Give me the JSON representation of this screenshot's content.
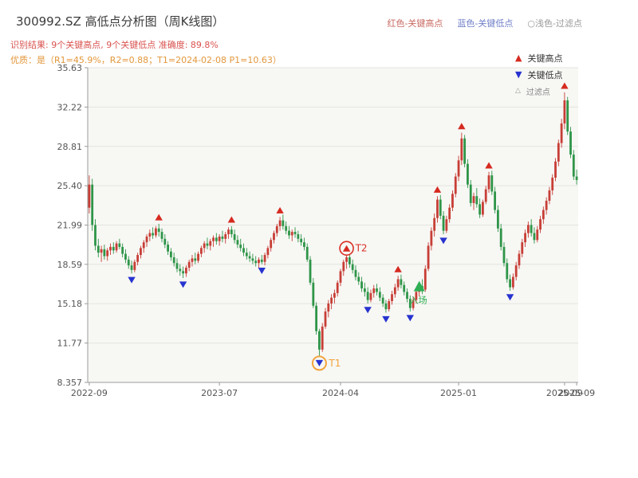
{
  "header": {
    "title": "300992.SZ 高低点分析图（周K线图）",
    "legend_top": [
      {
        "label": "红色-关键高点",
        "color": "#c96a62"
      },
      {
        "label": "蓝色-关键低点",
        "color": "#6f7fc8"
      },
      {
        "label": "○浅色-过滤点",
        "color": "#999999"
      }
    ],
    "result_line": "识别结果: 9个关键高点, 9个关键低点  准确度: 89.8%",
    "quality_line": "优质：是（R1=45.9%，R2=0.88；T1=2024-02-08 P1=10.63）"
  },
  "chart_data": {
    "type": "candlestick",
    "title": "300992.SZ 高低点分析图（周K线图）",
    "ylim": [
      8.357,
      35.63
    ],
    "yticks": [
      {
        "v": 8.357,
        "label": "8.357"
      },
      {
        "v": 11.77,
        "label": "11.77"
      },
      {
        "v": 15.18,
        "label": "15.18"
      },
      {
        "v": 18.59,
        "label": "18.59"
      },
      {
        "v": 21.99,
        "label": "21.99"
      },
      {
        "v": 25.4,
        "label": "25.40"
      },
      {
        "v": 28.81,
        "label": "28.81"
      },
      {
        "v": 32.22,
        "label": "32.22"
      },
      {
        "v": 35.63,
        "label": "35.63"
      }
    ],
    "xticks": [
      {
        "index": 0,
        "label": "2022-09"
      },
      {
        "index": 43,
        "label": "2023-07"
      },
      {
        "index": 83,
        "label": "2024-04"
      },
      {
        "index": 122,
        "label": "2025-01"
      },
      {
        "index": 157,
        "label": "2025-09"
      },
      {
        "index": 161,
        "label": "2025-09"
      }
    ],
    "legend": [
      {
        "label": "关键高点",
        "marker": "triangle-up",
        "color": "#d62a20"
      },
      {
        "label": "关键低点",
        "marker": "triangle-down",
        "color": "#2733cf"
      },
      {
        "label": "过滤点",
        "marker": "triangle-hollow",
        "color": "#9a9a9a"
      }
    ],
    "colors": {
      "up": "#c73e36",
      "down": "#2e9548",
      "high_marker": "#d62a20",
      "low_marker": "#2733cf",
      "grid": "#e4e4e0",
      "plot_bg": "#f7f7f4",
      "spine": "#9b9b9b",
      "tick_text": "#555555"
    },
    "candles": [
      [
        23.5,
        26.3,
        23.0,
        25.5
      ],
      [
        25.5,
        26.0,
        21.5,
        22.0
      ],
      [
        22.0,
        22.5,
        19.8,
        20.2
      ],
      [
        20.2,
        20.8,
        19.2,
        19.6
      ],
      [
        19.6,
        20.2,
        18.8,
        19.9
      ],
      [
        19.9,
        20.3,
        19.0,
        19.3
      ],
      [
        19.3,
        20.0,
        18.9,
        19.8
      ],
      [
        19.8,
        20.4,
        19.4,
        20.1
      ],
      [
        20.1,
        20.5,
        19.5,
        19.8
      ],
      [
        19.8,
        20.6,
        19.6,
        20.4
      ],
      [
        20.4,
        20.8,
        19.9,
        20.1
      ],
      [
        20.1,
        20.4,
        19.2,
        19.5
      ],
      [
        19.5,
        19.9,
        18.7,
        19.0
      ],
      [
        19.0,
        19.3,
        18.2,
        18.5
      ],
      [
        18.5,
        18.9,
        17.8,
        18.1
      ],
      [
        18.1,
        19.0,
        17.9,
        18.8
      ],
      [
        18.8,
        19.6,
        18.5,
        19.4
      ],
      [
        19.4,
        20.2,
        19.1,
        20.0
      ],
      [
        20.0,
        20.7,
        19.6,
        20.5
      ],
      [
        20.5,
        21.2,
        20.1,
        21.0
      ],
      [
        21.0,
        21.6,
        20.6,
        21.3
      ],
      [
        21.3,
        21.8,
        20.8,
        21.1
      ],
      [
        21.1,
        21.9,
        20.9,
        21.7
      ],
      [
        21.7,
        22.1,
        21.0,
        21.4
      ],
      [
        21.4,
        21.7,
        20.5,
        20.8
      ],
      [
        20.8,
        21.2,
        20.0,
        20.3
      ],
      [
        20.3,
        20.6,
        19.4,
        19.7
      ],
      [
        19.7,
        20.0,
        18.9,
        19.2
      ],
      [
        19.2,
        19.6,
        18.4,
        18.7
      ],
      [
        18.7,
        19.1,
        17.9,
        18.2
      ],
      [
        18.2,
        18.6,
        17.6,
        18.0
      ],
      [
        18.0,
        18.4,
        17.4,
        17.8
      ],
      [
        17.8,
        18.5,
        17.5,
        18.3
      ],
      [
        18.3,
        19.0,
        18.0,
        18.8
      ],
      [
        18.8,
        19.4,
        18.4,
        19.1
      ],
      [
        19.1,
        19.6,
        18.6,
        18.9
      ],
      [
        18.9,
        19.7,
        18.7,
        19.5
      ],
      [
        19.5,
        20.2,
        19.2,
        20.0
      ],
      [
        20.0,
        20.6,
        19.6,
        20.4
      ],
      [
        20.4,
        20.9,
        19.9,
        20.2
      ],
      [
        20.2,
        20.8,
        19.8,
        20.6
      ],
      [
        20.6,
        21.1,
        20.1,
        20.9
      ],
      [
        20.9,
        21.3,
        20.3,
        20.6
      ],
      [
        20.6,
        21.2,
        20.2,
        21.0
      ],
      [
        21.0,
        21.5,
        20.5,
        20.8
      ],
      [
        20.8,
        21.4,
        20.4,
        21.2
      ],
      [
        21.2,
        21.8,
        20.8,
        21.6
      ],
      [
        21.6,
        21.9,
        20.9,
        21.2
      ],
      [
        21.2,
        21.6,
        20.4,
        20.7
      ],
      [
        20.7,
        21.1,
        20.0,
        20.3
      ],
      [
        20.3,
        20.8,
        19.7,
        20.0
      ],
      [
        20.0,
        20.4,
        19.3,
        19.6
      ],
      [
        19.6,
        20.0,
        19.0,
        19.3
      ],
      [
        19.3,
        19.7,
        18.8,
        19.1
      ],
      [
        19.1,
        19.5,
        18.6,
        18.9
      ],
      [
        18.9,
        19.3,
        18.4,
        18.7
      ],
      [
        18.7,
        19.2,
        18.3,
        19.0
      ],
      [
        19.0,
        19.4,
        18.6,
        18.8
      ],
      [
        18.8,
        19.6,
        18.5,
        19.4
      ],
      [
        19.4,
        20.2,
        19.1,
        20.0
      ],
      [
        20.0,
        20.9,
        19.7,
        20.7
      ],
      [
        20.7,
        21.5,
        20.4,
        21.3
      ],
      [
        21.3,
        22.1,
        21.0,
        21.9
      ],
      [
        21.9,
        22.7,
        21.5,
        22.4
      ],
      [
        22.4,
        22.9,
        21.6,
        21.9
      ],
      [
        21.9,
        22.3,
        21.2,
        21.5
      ],
      [
        21.5,
        21.9,
        20.8,
        21.1
      ],
      [
        21.1,
        21.6,
        20.6,
        21.4
      ],
      [
        21.4,
        21.8,
        20.9,
        21.2
      ],
      [
        21.2,
        21.5,
        20.5,
        20.8
      ],
      [
        20.8,
        21.2,
        20.2,
        20.5
      ],
      [
        20.5,
        20.9,
        19.8,
        20.1
      ],
      [
        20.1,
        20.4,
        18.8,
        19.0
      ],
      [
        19.0,
        19.3,
        16.8,
        17.0
      ],
      [
        17.0,
        17.4,
        14.8,
        15.0
      ],
      [
        15.0,
        15.3,
        12.5,
        12.8
      ],
      [
        12.8,
        13.0,
        10.63,
        11.2
      ],
      [
        11.2,
        13.5,
        11.0,
        13.2
      ],
      [
        13.2,
        14.8,
        13.0,
        14.5
      ],
      [
        14.5,
        15.5,
        14.0,
        15.2
      ],
      [
        15.2,
        16.0,
        14.7,
        15.7
      ],
      [
        15.7,
        16.4,
        15.2,
        16.1
      ],
      [
        16.1,
        17.2,
        15.8,
        17.0
      ],
      [
        17.0,
        18.2,
        16.7,
        18.0
      ],
      [
        18.0,
        19.0,
        17.6,
        18.8
      ],
      [
        18.8,
        19.4,
        18.2,
        19.2
      ],
      [
        19.2,
        19.5,
        18.3,
        18.6
      ],
      [
        18.6,
        19.0,
        17.8,
        18.1
      ],
      [
        18.1,
        18.5,
        17.2,
        17.5
      ],
      [
        17.5,
        17.9,
        16.8,
        17.1
      ],
      [
        17.1,
        17.5,
        16.2,
        16.5
      ],
      [
        16.5,
        17.0,
        15.8,
        16.2
      ],
      [
        16.2,
        16.6,
        15.2,
        15.5
      ],
      [
        15.5,
        16.4,
        15.3,
        16.1
      ],
      [
        16.1,
        16.8,
        15.7,
        16.5
      ],
      [
        16.5,
        16.9,
        15.9,
        16.2
      ],
      [
        16.2,
        16.6,
        15.4,
        15.7
      ],
      [
        15.7,
        16.0,
        14.9,
        15.2
      ],
      [
        15.2,
        15.5,
        14.4,
        14.7
      ],
      [
        14.7,
        15.6,
        14.5,
        15.4
      ],
      [
        15.4,
        16.3,
        15.1,
        16.0
      ],
      [
        16.0,
        16.9,
        15.7,
        16.6
      ],
      [
        16.6,
        17.6,
        16.3,
        17.3
      ],
      [
        17.3,
        17.7,
        16.5,
        16.8
      ],
      [
        16.8,
        17.1,
        15.9,
        16.2
      ],
      [
        16.2,
        16.5,
        15.3,
        15.6
      ],
      [
        15.6,
        15.9,
        14.5,
        14.8
      ],
      [
        14.8,
        15.8,
        14.6,
        15.5
      ],
      [
        15.5,
        16.5,
        15.2,
        16.2
      ],
      [
        16.2,
        17.0,
        15.8,
        16.7
      ],
      [
        16.7,
        17.3,
        16.0,
        16.4
      ],
      [
        16.4,
        18.5,
        16.2,
        18.2
      ],
      [
        18.2,
        20.5,
        18.0,
        20.2
      ],
      [
        20.2,
        21.8,
        19.8,
        21.5
      ],
      [
        21.5,
        23.0,
        21.0,
        22.6
      ],
      [
        22.6,
        24.5,
        22.2,
        24.2
      ],
      [
        24.2,
        24.6,
        22.5,
        22.8
      ],
      [
        22.8,
        23.2,
        21.2,
        21.5
      ],
      [
        21.5,
        22.8,
        21.3,
        22.5
      ],
      [
        22.5,
        23.8,
        22.2,
        23.5
      ],
      [
        23.5,
        25.0,
        23.2,
        24.7
      ],
      [
        24.7,
        26.5,
        24.4,
        26.2
      ],
      [
        26.2,
        28.0,
        25.8,
        27.6
      ],
      [
        27.6,
        30.0,
        27.2,
        29.5
      ],
      [
        29.5,
        29.8,
        27.0,
        27.3
      ],
      [
        27.3,
        27.7,
        25.2,
        25.5
      ],
      [
        25.5,
        25.9,
        23.6,
        23.9
      ],
      [
        23.9,
        24.8,
        23.3,
        24.5
      ],
      [
        24.5,
        25.2,
        23.5,
        23.8
      ],
      [
        23.8,
        24.3,
        22.6,
        22.9
      ],
      [
        22.9,
        24.2,
        22.7,
        24.0
      ],
      [
        24.0,
        25.4,
        23.8,
        25.1
      ],
      [
        25.1,
        26.6,
        24.8,
        26.3
      ],
      [
        26.3,
        26.7,
        24.6,
        24.9
      ],
      [
        24.9,
        25.3,
        23.0,
        23.3
      ],
      [
        23.3,
        23.7,
        21.4,
        21.7
      ],
      [
        21.7,
        22.1,
        19.8,
        20.1
      ],
      [
        20.1,
        20.5,
        18.4,
        18.7
      ],
      [
        18.7,
        19.1,
        17.0,
        17.3
      ],
      [
        17.3,
        17.7,
        16.3,
        16.6
      ],
      [
        16.6,
        17.8,
        16.4,
        17.5
      ],
      [
        17.5,
        18.8,
        17.2,
        18.5
      ],
      [
        18.5,
        19.8,
        18.2,
        19.5
      ],
      [
        19.5,
        20.8,
        19.2,
        20.5
      ],
      [
        20.5,
        21.6,
        20.1,
        21.3
      ],
      [
        21.3,
        22.3,
        20.9,
        22.0
      ],
      [
        22.0,
        22.5,
        21.0,
        21.3
      ],
      [
        21.3,
        21.8,
        20.4,
        20.7
      ],
      [
        20.7,
        21.9,
        20.5,
        21.6
      ],
      [
        21.6,
        22.8,
        21.3,
        22.5
      ],
      [
        22.5,
        23.6,
        22.1,
        23.3
      ],
      [
        23.3,
        24.4,
        22.9,
        24.1
      ],
      [
        24.1,
        25.3,
        23.8,
        25.0
      ],
      [
        25.0,
        26.4,
        24.6,
        26.1
      ],
      [
        26.1,
        27.8,
        25.8,
        27.5
      ],
      [
        27.5,
        29.4,
        27.1,
        29.1
      ],
      [
        29.1,
        31.2,
        28.7,
        30.8
      ],
      [
        30.8,
        33.5,
        30.3,
        32.8
      ],
      [
        32.8,
        33.1,
        29.8,
        30.1
      ],
      [
        30.1,
        30.5,
        27.8,
        28.1
      ],
      [
        28.1,
        28.5,
        25.9,
        26.2
      ],
      [
        26.2,
        26.8,
        25.5,
        25.9
      ]
    ],
    "key_highs": [
      {
        "index": 23,
        "value": 22.4
      },
      {
        "index": 47,
        "value": 22.2
      },
      {
        "index": 63,
        "value": 23.0
      },
      {
        "index": 85,
        "value": 19.7
      },
      {
        "index": 102,
        "value": 17.9
      },
      {
        "index": 115,
        "value": 24.8
      },
      {
        "index": 123,
        "value": 30.3
      },
      {
        "index": 132,
        "value": 26.9
      },
      {
        "index": 157,
        "value": 33.8
      }
    ],
    "key_lows": [
      {
        "index": 14,
        "value": 17.5
      },
      {
        "index": 31,
        "value": 17.1
      },
      {
        "index": 57,
        "value": 18.3
      },
      {
        "index": 76,
        "value": 10.3
      },
      {
        "index": 92,
        "value": 14.9
      },
      {
        "index": 98,
        "value": 14.1
      },
      {
        "index": 106,
        "value": 14.2
      },
      {
        "index": 117,
        "value": 20.9
      },
      {
        "index": 139,
        "value": 16.0
      }
    ],
    "annotations": {
      "t1": {
        "index": 76,
        "value": 10.3,
        "label": "T1",
        "color": "#f2a33c"
      },
      "t2": {
        "index": 85,
        "value": 19.7,
        "label": "T2",
        "color": "#d93025"
      },
      "entry": {
        "index": 109,
        "value": 16.6,
        "label": "入场",
        "color": "#2fae54"
      }
    }
  }
}
